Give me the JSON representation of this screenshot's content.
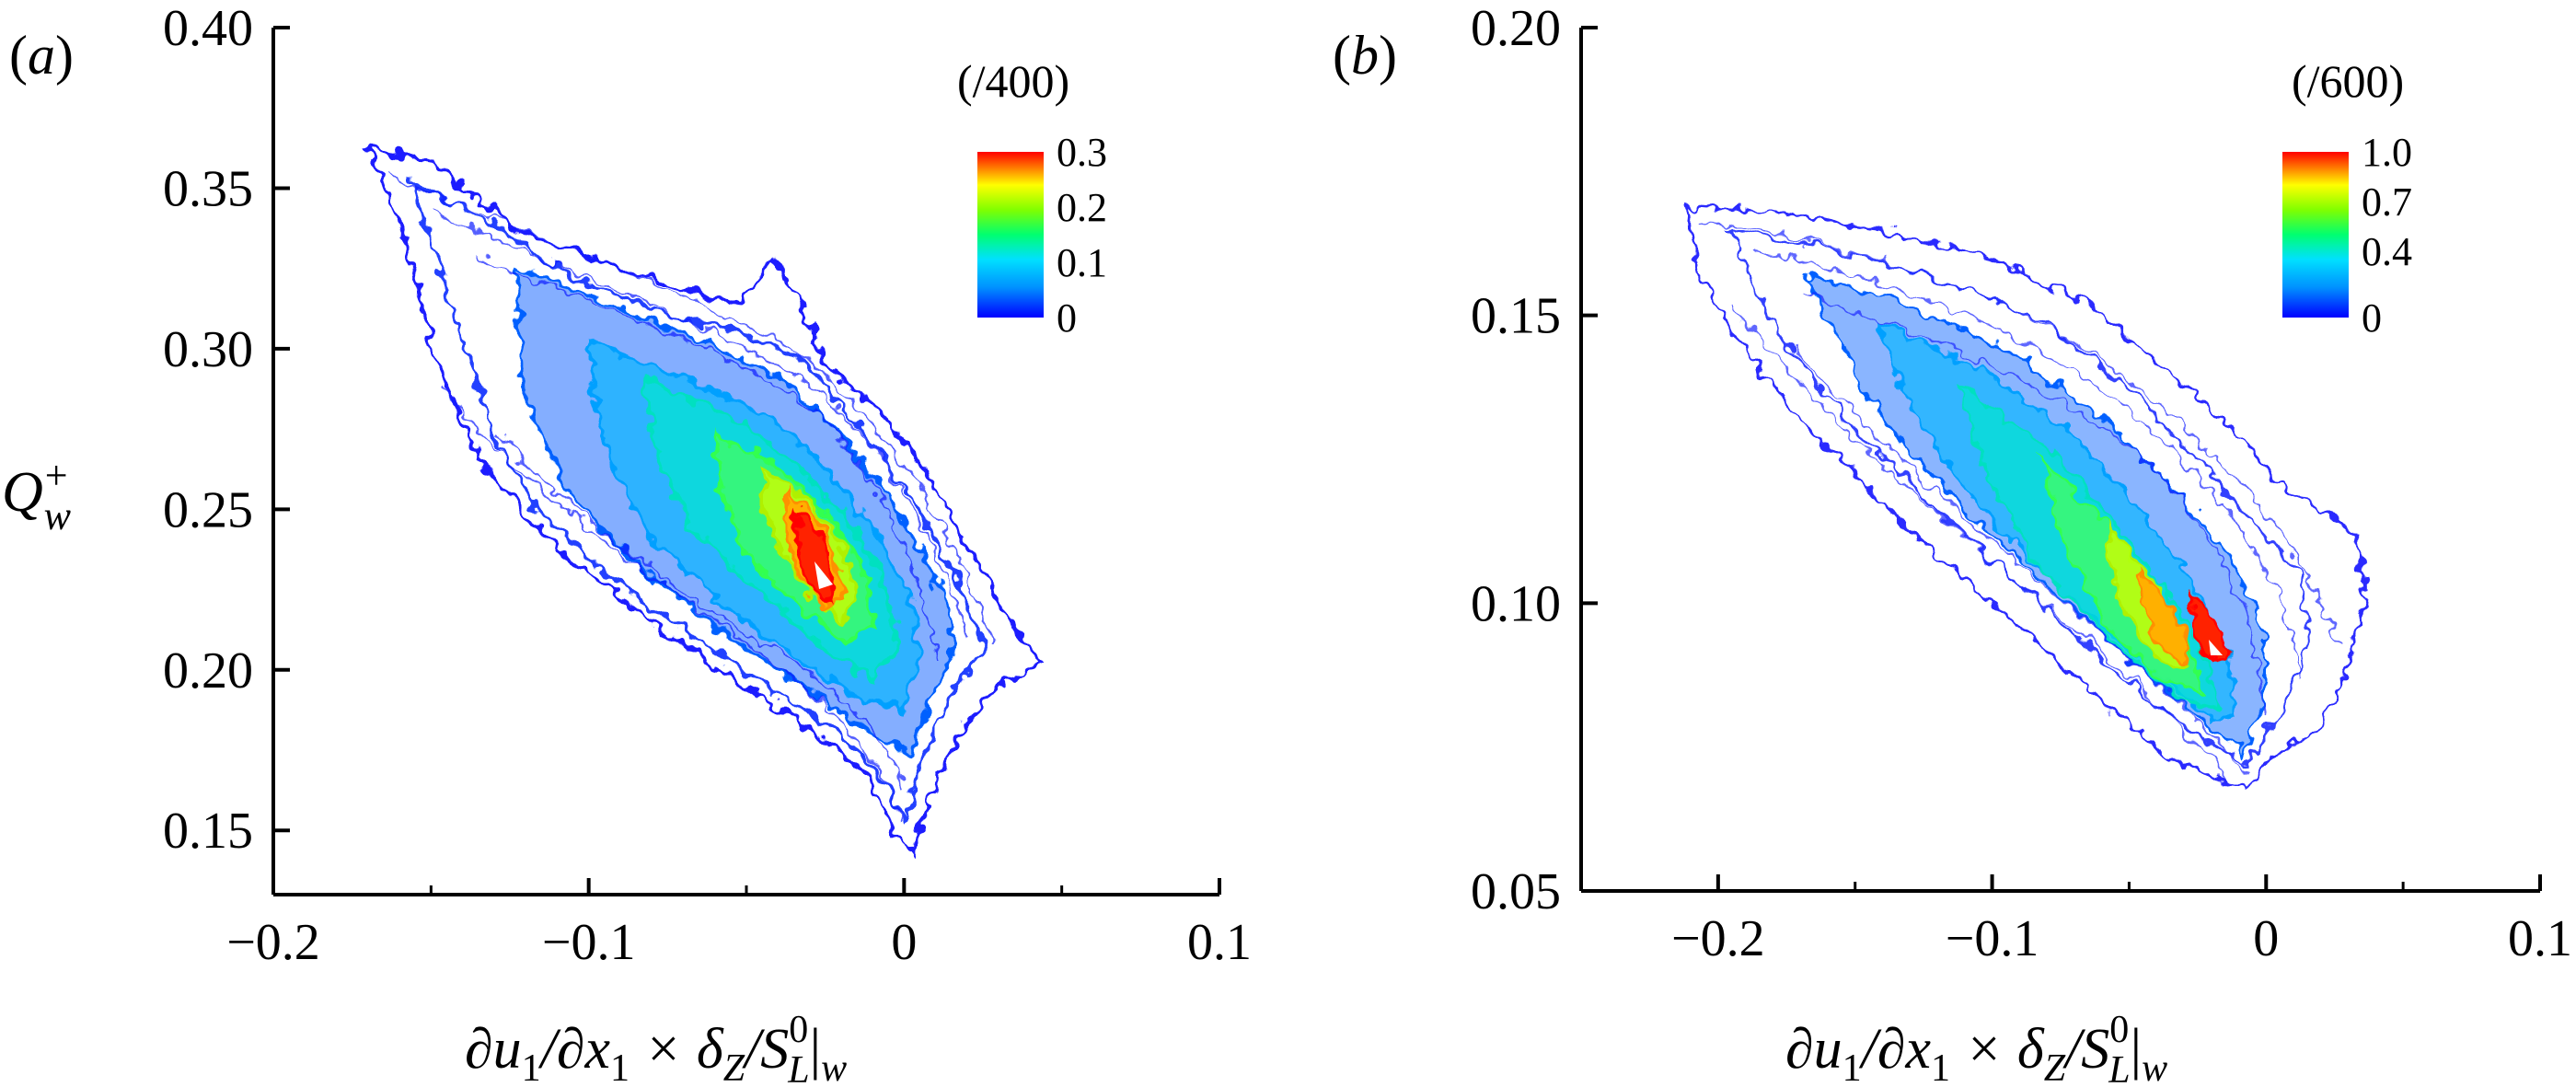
{
  "chart_data": [
    {
      "type": "contour",
      "panel_label_open": "(",
      "panel_label_letter": "a",
      "panel_label_close": ")",
      "xlim": [
        -0.2,
        0.1
      ],
      "ylim": [
        0.13,
        0.4
      ],
      "xticks": [
        -0.2,
        -0.1,
        0,
        0.1
      ],
      "xtick_labels": [
        "−0.2",
        "−0.1",
        "0",
        "0.1"
      ],
      "yticks": [
        0.15,
        0.2,
        0.25,
        0.3,
        0.35,
        0.4
      ],
      "ytick_labels": [
        "0.15",
        "0.20",
        "0.25",
        "0.30",
        "0.35",
        "0.40"
      ],
      "ylabel": {
        "base": "Q",
        "sup": "+",
        "sub": "w"
      },
      "xlabel": {
        "p1": "∂u",
        "s1": "1",
        "p2": "/∂x",
        "s2": "1",
        "p3": " × δ",
        "s3": "Z",
        "p4": "/S",
        "sup4": "0",
        "s4": "L",
        "p5": "|",
        "s5": "w"
      },
      "colorbar": {
        "title": "(/400)",
        "min": 0,
        "max": 0.3,
        "tick_labels": [
          "0.3",
          "0.2",
          "0.1",
          "0"
        ],
        "tick_values": [
          0.3,
          0.2,
          0.1,
          0
        ]
      },
      "ridge": {
        "x": [
          -0.175,
          -0.14,
          -0.1,
          -0.07,
          -0.045,
          -0.025,
          -0.012,
          0.0,
          0.01
        ],
        "y": [
          0.355,
          0.33,
          0.3,
          0.28,
          0.26,
          0.235,
          0.21,
          0.18,
          0.145
        ]
      },
      "peak": {
        "x": -0.025,
        "y": 0.232,
        "value": 0.3
      }
    },
    {
      "type": "contour",
      "panel_label_open": "(",
      "panel_label_letter": "b",
      "panel_label_close": ")",
      "xlim": [
        -0.25,
        0.1
      ],
      "ylim": [
        0.05,
        0.2
      ],
      "xticks": [
        -0.2,
        -0.1,
        0,
        0.1
      ],
      "xtick_labels": [
        "−0.2",
        "−0.1",
        "0",
        "0.1"
      ],
      "yticks": [
        0.05,
        0.1,
        0.15,
        0.2
      ],
      "ytick_labels": [
        "0.05",
        "0.10",
        "0.15",
        "0.20"
      ],
      "xlabel": {
        "p1": "∂u",
        "s1": "1",
        "p2": "/∂x",
        "s2": "1",
        "p3": " × δ",
        "s3": "Z",
        "p4": "/S",
        "sup4": "0",
        "s4": "L",
        "p5": "|",
        "s5": "w"
      },
      "colorbar": {
        "title": "(/600)",
        "min": 0,
        "max": 1.0,
        "tick_labels": [
          "1.0",
          "0.7",
          "0.4",
          "0"
        ],
        "tick_values": [
          1.0,
          0.7,
          0.4,
          0
        ]
      },
      "ridge": {
        "x": [
          -0.2,
          -0.16,
          -0.12,
          -0.08,
          -0.05,
          -0.03,
          -0.015,
          -0.005,
          0.0
        ],
        "y": [
          0.166,
          0.155,
          0.14,
          0.125,
          0.112,
          0.102,
          0.092,
          0.08,
          0.07
        ]
      },
      "peak": {
        "x": -0.015,
        "y": 0.093,
        "value": 1.0
      }
    }
  ],
  "colors": {
    "axis": "#000000",
    "cmap": [
      "#0000ff",
      "#0080ff",
      "#00c8ff",
      "#00ff80",
      "#80ff00",
      "#ffff00",
      "#ff8000",
      "#ff0000"
    ]
  }
}
